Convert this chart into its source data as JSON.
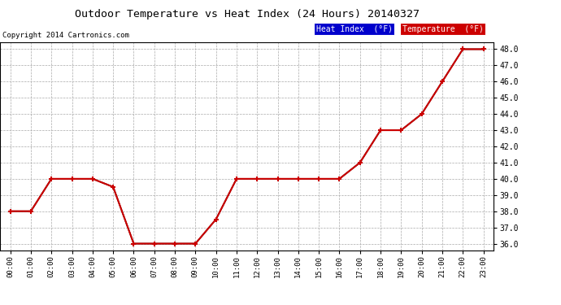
{
  "title": "Outdoor Temperature vs Heat Index (24 Hours) 20140327",
  "copyright": "Copyright 2014 Cartronics.com",
  "hours": [
    "00:00",
    "01:00",
    "02:00",
    "03:00",
    "04:00",
    "05:00",
    "06:00",
    "07:00",
    "08:00",
    "09:00",
    "10:00",
    "11:00",
    "12:00",
    "13:00",
    "14:00",
    "15:00",
    "16:00",
    "17:00",
    "18:00",
    "19:00",
    "20:00",
    "21:00",
    "22:00",
    "23:00"
  ],
  "temperature": [
    38.0,
    38.0,
    40.0,
    40.0,
    40.0,
    39.5,
    36.0,
    36.0,
    36.0,
    36.0,
    37.5,
    40.0,
    40.0,
    40.0,
    40.0,
    40.0,
    40.0,
    41.0,
    43.0,
    43.0,
    44.0,
    46.0,
    48.0,
    48.0
  ],
  "heat_index": [
    38.0,
    38.0,
    40.0,
    40.0,
    40.0,
    39.5,
    36.0,
    36.0,
    36.0,
    36.0,
    37.5,
    40.0,
    40.0,
    40.0,
    40.0,
    40.0,
    40.0,
    41.0,
    43.0,
    43.0,
    44.0,
    46.0,
    48.0,
    48.0
  ],
  "temp_color": "#CC0000",
  "heat_color": "#000000",
  "bg_color": "#ffffff",
  "grid_color": "#aaaaaa",
  "ylim": [
    35.6,
    48.4
  ],
  "yticks": [
    36.0,
    37.0,
    38.0,
    39.0,
    40.0,
    41.0,
    42.0,
    43.0,
    44.0,
    45.0,
    46.0,
    47.0,
    48.0
  ],
  "legend_heat_bg": "#0000CC",
  "legend_temp_bg": "#CC0000",
  "legend_heat_text": "Heat Index  (°F)",
  "legend_temp_text": "Temperature  (°F)"
}
